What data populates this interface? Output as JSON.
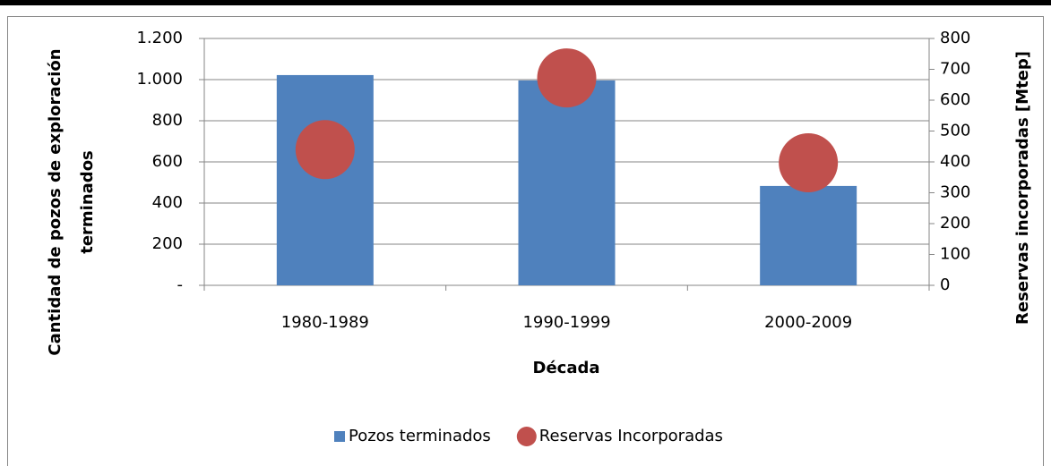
{
  "chart_data": {
    "type": "bar",
    "xlabel": "Década",
    "ylabel": [
      "Cantidad de pozos de exploración",
      "terminados"
    ],
    "y2label": "Reservas incorporadas [Mtep]",
    "categories": [
      "1980-1989",
      "1990-1999",
      "2000-2009"
    ],
    "series": [
      {
        "name": "Pozos terminados",
        "type": "bar",
        "color": "#4f81bd",
        "values": [
          1022,
          996,
          483
        ]
      },
      {
        "name": "Reservas Incorporadas",
        "type": "scatter",
        "axis": "y2",
        "color": "#c0504d",
        "values": [
          440,
          672,
          397
        ]
      }
    ],
    "ylim": [
      0,
      1200
    ],
    "yticks": [
      {
        "value": 0,
        "label": "-"
      },
      200,
      400,
      600,
      800,
      {
        "value": 1000,
        "label": "1.000"
      },
      {
        "value": 1200,
        "label": "1.200"
      }
    ],
    "y2lim": [
      0,
      800
    ],
    "y2ticks": [
      0,
      100,
      200,
      300,
      400,
      500,
      600,
      700,
      800
    ],
    "grid": true,
    "legend": "bottom"
  }
}
